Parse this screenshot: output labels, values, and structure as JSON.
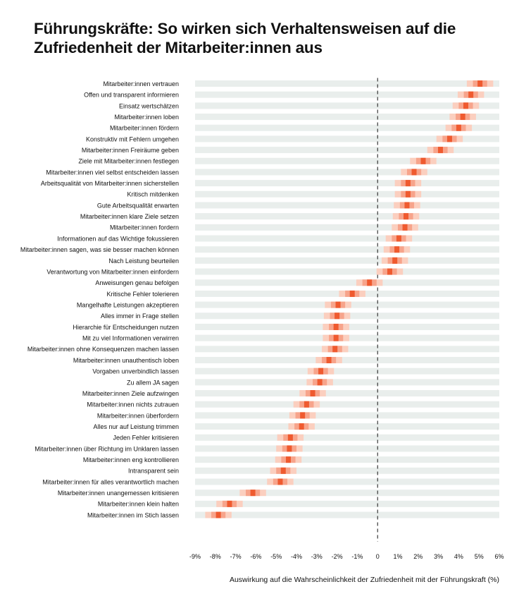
{
  "chart_title": "Führungskräfte: So wirken sich Verhaltensweisen auf die Zufriedenheit der Mitarbeiter:innen aus",
  "chart_data": {
    "type": "interval",
    "title": "Führungskräfte: So wirken sich Verhaltensweisen auf die Zufriedenheit der Mitarbeiter:innen aus",
    "xlabel": "Auswirkung auf die Wahrscheinlichkeit der Zufriedenheit mit der Führungskraft (%)",
    "xlim": [
      -9,
      6
    ],
    "x_ticks": [
      "-9%",
      "-8%",
      "-7%",
      "-6%",
      "-5%",
      "-4%",
      "-3%",
      "-2%",
      "-1%",
      "0",
      "1%",
      "2%",
      "3%",
      "4%",
      "5%",
      "6%"
    ],
    "reference_line": 0,
    "colors": {
      "point": "#ef5a2f",
      "inner_interval": "#f7a48b",
      "outer_interval": "#fbcfbf",
      "row_band": "#e9eeec",
      "text": "#111111"
    },
    "categories": [
      "Mitarbeiter:innen vertrauen",
      "Offen und transparent informieren",
      "Einsatz wertschätzen",
      "Mitarbeiter:innen loben",
      "Mitarbeiter:innen fördern",
      "Konstruktiv mit Fehlern umgehen",
      "Mitarbeiter:innen Freiräume geben",
      "Ziele mit Mitarbeiter:innen festlegen",
      "Mitarbeiter:innen viel selbst entscheiden lassen",
      "Arbeitsqualität von Mitarbeiter:innen sicherstellen",
      "Kritisch mitdenken",
      "Gute Arbeitsqualität erwarten",
      "Mitarbeiter:innen klare Ziele setzen",
      "Mitarbeiter:innen fordern",
      "Informationen auf das Wichtige fokussieren",
      "Mitarbeiter:innen sagen, was sie besser machen können",
      "Nach Leistung beurteilen",
      "Verantwortung von Mitarbeiter:innen einfordern",
      "Anweisungen genau befolgen",
      "Kritische Fehler tolerieren",
      "Mangelhafte Leistungen akzeptieren",
      "Alles immer in Frage stellen",
      "Hierarchie für Entscheidungen nutzen",
      "Mit zu viel Informationen verwirren",
      "Mitarbeiter:innen ohne Konsequenzen machen lassen",
      "Mitarbeiter:innen unauthentisch loben",
      "Vorgaben unverbindlich lassen",
      "Zu allem JA sagen",
      "Mitarbeiter:innen Ziele aufzwingen",
      "Mitarbeiter:innen nichts zutrauen",
      "Mitarbeiter:innen überfordern",
      "Alles nur auf Leistung trimmen",
      "Jeden Fehler kritisieren",
      "Mitarbeiter:innen über Richtung im Unklaren lassen",
      "Mitarbeiter:innen eng kontrollieren",
      "Intransparent sein",
      "Mitarbeiter:innen für alles verantwortlich machen",
      "Mitarbeiter:innen unangemessen kritisieren",
      "Mitarbeiter:innen klein halten",
      "Mitarbeiter:innen im Stich lassen"
    ],
    "estimates": [
      5.05,
      4.6,
      4.35,
      4.2,
      4.0,
      3.55,
      3.1,
      2.25,
      1.8,
      1.5,
      1.5,
      1.45,
      1.4,
      1.35,
      1.05,
      0.95,
      0.85,
      0.6,
      -0.4,
      -1.25,
      -1.95,
      -2.0,
      -2.05,
      -2.05,
      -2.1,
      -2.4,
      -2.8,
      -2.85,
      -3.2,
      -3.5,
      -3.7,
      -3.75,
      -4.3,
      -4.35,
      -4.4,
      -4.65,
      -4.8,
      -6.15,
      -7.3,
      -7.85
    ],
    "inner_interval": [
      [
        4.7,
        5.4
      ],
      [
        4.25,
        4.95
      ],
      [
        4.0,
        4.7
      ],
      [
        3.85,
        4.55
      ],
      [
        3.65,
        4.35
      ],
      [
        3.2,
        3.9
      ],
      [
        2.75,
        3.45
      ],
      [
        1.9,
        2.6
      ],
      [
        1.45,
        2.15
      ],
      [
        1.15,
        1.85
      ],
      [
        1.15,
        1.85
      ],
      [
        1.1,
        1.8
      ],
      [
        1.05,
        1.75
      ],
      [
        1.0,
        1.7
      ],
      [
        0.7,
        1.4
      ],
      [
        0.6,
        1.3
      ],
      [
        0.5,
        1.2
      ],
      [
        0.25,
        0.95
      ],
      [
        -0.75,
        -0.05
      ],
      [
        -1.6,
        -0.9
      ],
      [
        -2.3,
        -1.6
      ],
      [
        -2.35,
        -1.65
      ],
      [
        -2.4,
        -1.7
      ],
      [
        -2.4,
        -1.7
      ],
      [
        -2.45,
        -1.75
      ],
      [
        -2.75,
        -2.05
      ],
      [
        -3.15,
        -2.45
      ],
      [
        -3.2,
        -2.5
      ],
      [
        -3.55,
        -2.85
      ],
      [
        -3.85,
        -3.15
      ],
      [
        -4.05,
        -3.35
      ],
      [
        -4.1,
        -3.4
      ],
      [
        -4.65,
        -3.95
      ],
      [
        -4.7,
        -4.0
      ],
      [
        -4.75,
        -4.05
      ],
      [
        -5.0,
        -4.3
      ],
      [
        -5.15,
        -4.45
      ],
      [
        -6.5,
        -5.8
      ],
      [
        -7.65,
        -6.95
      ],
      [
        -8.2,
        -7.5
      ]
    ],
    "outer_interval": [
      [
        4.4,
        5.7
      ],
      [
        3.95,
        5.25
      ],
      [
        3.7,
        5.0
      ],
      [
        3.55,
        4.85
      ],
      [
        3.35,
        4.65
      ],
      [
        2.9,
        4.2
      ],
      [
        2.45,
        3.75
      ],
      [
        1.6,
        2.9
      ],
      [
        1.15,
        2.45
      ],
      [
        0.85,
        2.15
      ],
      [
        0.85,
        2.15
      ],
      [
        0.8,
        2.1
      ],
      [
        0.75,
        2.05
      ],
      [
        0.7,
        2.0
      ],
      [
        0.4,
        1.7
      ],
      [
        0.3,
        1.6
      ],
      [
        0.2,
        1.5
      ],
      [
        -0.05,
        1.25
      ],
      [
        -1.05,
        0.25
      ],
      [
        -1.9,
        -0.6
      ],
      [
        -2.6,
        -1.3
      ],
      [
        -2.65,
        -1.35
      ],
      [
        -2.7,
        -1.4
      ],
      [
        -2.7,
        -1.4
      ],
      [
        -2.75,
        -1.45
      ],
      [
        -3.05,
        -1.75
      ],
      [
        -3.45,
        -2.15
      ],
      [
        -3.5,
        -2.2
      ],
      [
        -3.85,
        -2.55
      ],
      [
        -4.15,
        -2.85
      ],
      [
        -4.35,
        -3.05
      ],
      [
        -4.4,
        -3.1
      ],
      [
        -4.95,
        -3.65
      ],
      [
        -5.0,
        -3.7
      ],
      [
        -5.05,
        -3.75
      ],
      [
        -5.3,
        -4.0
      ],
      [
        -5.45,
        -4.15
      ],
      [
        -6.8,
        -5.5
      ],
      [
        -7.95,
        -6.65
      ],
      [
        -8.5,
        -7.2
      ]
    ]
  }
}
